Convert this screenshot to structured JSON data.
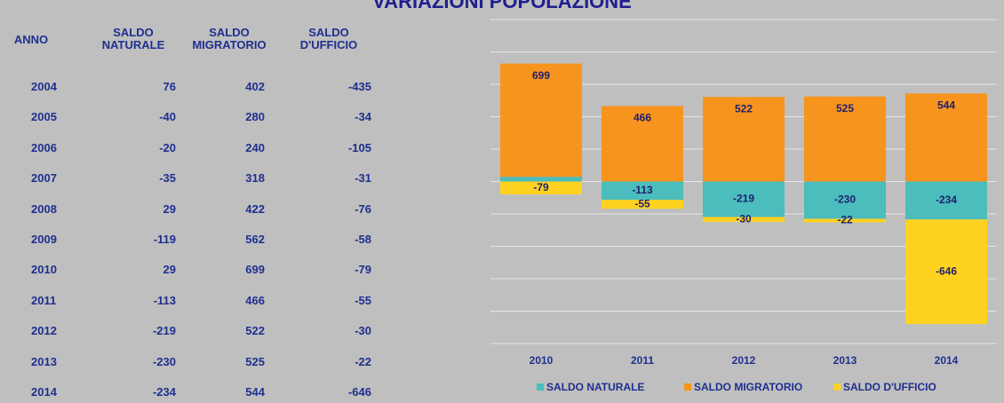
{
  "title": "VARIAZIONI POPOLAZIONE",
  "table": {
    "headers": [
      "ANNO",
      "SALDO NATURALE",
      "SALDO MIGRATORIO",
      "SALDO D'UFFICIO"
    ],
    "rows": [
      [
        "2004",
        "76",
        "402",
        "-435"
      ],
      [
        "2005",
        "-40",
        "280",
        "-34"
      ],
      [
        "2006",
        "-20",
        "240",
        "-105"
      ],
      [
        "2007",
        "-35",
        "318",
        "-31"
      ],
      [
        "2008",
        "29",
        "422",
        "-76"
      ],
      [
        "2009",
        "-119",
        "562",
        "-58"
      ],
      [
        "2010",
        "29",
        "699",
        "-79"
      ],
      [
        "2011",
        "-113",
        "466",
        "-55"
      ],
      [
        "2012",
        "-219",
        "522",
        "-30"
      ],
      [
        "2013",
        "-230",
        "525",
        "-22"
      ],
      [
        "2014",
        "-234",
        "544",
        "-646"
      ]
    ]
  },
  "chart_data": {
    "type": "stacked_bar",
    "categories": [
      "2010",
      "2011",
      "2012",
      "2013",
      "2014"
    ],
    "series": [
      {
        "name": "SALDO NATURALE",
        "color": "#4bbdbd",
        "values": [
          29,
          -113,
          -219,
          -230,
          -234
        ]
      },
      {
        "name": "SALDO MIGRATORIO",
        "color": "#f7941d",
        "values": [
          699,
          466,
          522,
          525,
          544
        ]
      },
      {
        "name": "SALDO D'UFFICIO",
        "color": "#ffd21f",
        "values": [
          -79,
          -55,
          -30,
          -22,
          -646
        ]
      }
    ],
    "ylim": [
      -1000,
      1000
    ],
    "yticks": [
      -1000,
      -800,
      -600,
      -400,
      -200,
      0,
      200,
      400,
      600,
      800,
      1000
    ],
    "grid": true,
    "legend": "bottom"
  }
}
